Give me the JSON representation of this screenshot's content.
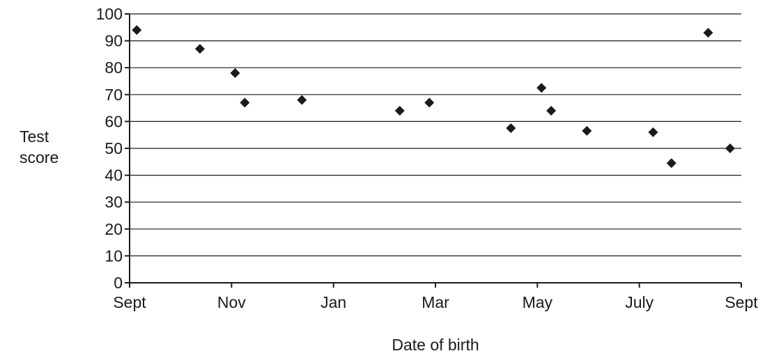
{
  "chart_data": {
    "type": "scatter",
    "title": "",
    "xlabel": "Date of birth",
    "ylabel_line1": "Test",
    "ylabel_line2": "score",
    "x_ticks": [
      "Sept",
      "Nov",
      "Jan",
      "Mar",
      "May",
      "July",
      "Sept"
    ],
    "ylim": [
      0,
      100
    ],
    "y_ticks": [
      0,
      10,
      20,
      30,
      40,
      50,
      60,
      70,
      80,
      90,
      100
    ],
    "grid": "horizontal",
    "marker": "diamond",
    "marker_color": "#1a1a1a",
    "points": [
      {
        "x": 0.14,
        "y": 94
      },
      {
        "x": 1.38,
        "y": 87
      },
      {
        "x": 2.07,
        "y": 78
      },
      {
        "x": 2.26,
        "y": 67
      },
      {
        "x": 3.38,
        "y": 68
      },
      {
        "x": 5.3,
        "y": 64
      },
      {
        "x": 5.88,
        "y": 67
      },
      {
        "x": 7.48,
        "y": 57.5
      },
      {
        "x": 8.08,
        "y": 72.5
      },
      {
        "x": 8.27,
        "y": 64
      },
      {
        "x": 8.97,
        "y": 56.5
      },
      {
        "x": 10.27,
        "y": 56
      },
      {
        "x": 10.63,
        "y": 44.5
      },
      {
        "x": 11.35,
        "y": 93
      },
      {
        "x": 11.78,
        "y": 50
      }
    ]
  }
}
